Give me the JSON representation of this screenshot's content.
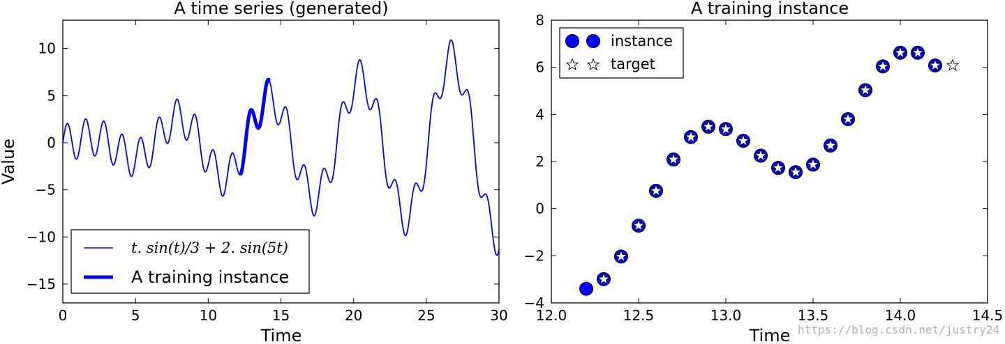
{
  "chart_data": [
    {
      "type": "line",
      "title": "A time series (generated)",
      "xlabel": "Time",
      "ylabel": "Value",
      "xlim": [
        0,
        30
      ],
      "ylim": [
        -17,
        13
      ],
      "xticks": [
        "0",
        "5",
        "10",
        "15",
        "20",
        "25",
        "30"
      ],
      "yticks": [
        "−15",
        "−10",
        "−5",
        "0",
        "5",
        "10"
      ],
      "series": [
        {
          "name": "t. sin(t)/3 + 2. sin(5t)",
          "function": "t*sin(t)/3 + 2*sin(5*t)",
          "x_range": [
            0,
            30
          ],
          "color": "#0000ff",
          "line": "thin"
        },
        {
          "name": "A training instance",
          "function": "t*sin(t)/3 + 2*sin(5*t)",
          "x_range": [
            12.2,
            14.2
          ],
          "color": "#0000ff",
          "line": "thick"
        }
      ],
      "legend": "lower-left"
    },
    {
      "type": "scatter",
      "title": "A training instance",
      "xlabel": "Time",
      "ylabel": "",
      "xlim": [
        12.0,
        14.5
      ],
      "ylim": [
        -4,
        8
      ],
      "xticks": [
        "12.0",
        "12.5",
        "13.0",
        "13.5",
        "14.0",
        "14.5"
      ],
      "yticks": [
        "−4",
        "−2",
        "0",
        "2",
        "4",
        "6",
        "8"
      ],
      "series": [
        {
          "name": "instance",
          "marker": "circle",
          "color": "#0000ff",
          "x": [
            12.2,
            12.3,
            12.4,
            12.5,
            12.6,
            12.7,
            12.8,
            12.9,
            13.0,
            13.1,
            13.2,
            13.3,
            13.4,
            13.5,
            13.6,
            13.7,
            13.8,
            13.9,
            14.0,
            14.1,
            14.2
          ],
          "y": [
            -3.4,
            -2.99,
            -2.03,
            -0.72,
            0.76,
            2.09,
            3.04,
            3.48,
            3.38,
            2.88,
            2.25,
            1.73,
            1.55,
            1.87,
            2.68,
            3.8,
            5.03,
            6.04,
            6.62,
            6.62,
            6.08
          ]
        },
        {
          "name": "target",
          "marker": "star",
          "color": "#ffffff",
          "x": [
            12.3,
            12.4,
            12.5,
            12.6,
            12.7,
            12.8,
            12.9,
            13.0,
            13.1,
            13.2,
            13.3,
            13.4,
            13.5,
            13.6,
            13.7,
            13.8,
            13.9,
            14.0,
            14.1,
            14.2,
            14.3
          ],
          "y": [
            -2.99,
            -2.03,
            -0.72,
            0.76,
            2.09,
            3.04,
            3.48,
            3.38,
            2.88,
            2.25,
            1.73,
            1.55,
            1.87,
            2.68,
            3.8,
            5.03,
            6.04,
            6.62,
            6.62,
            6.08,
            6.08
          ]
        }
      ],
      "legend": "upper-left"
    }
  ],
  "watermark": "https://blog.csdn.net/justry24"
}
